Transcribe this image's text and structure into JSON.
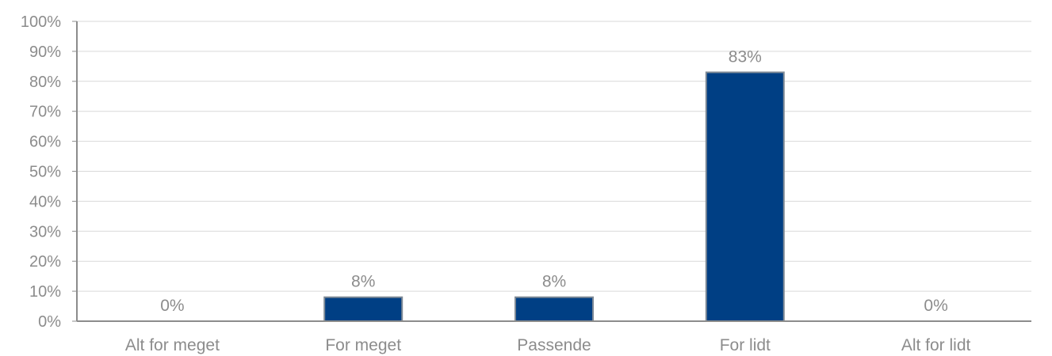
{
  "chart_data": {
    "type": "bar",
    "categories": [
      "Alt for meget",
      "For meget",
      "Passende",
      "For lidt",
      "Alt for lidt"
    ],
    "values": [
      0,
      8,
      8,
      83,
      0
    ],
    "data_labels": [
      "0%",
      "8%",
      "8%",
      "83%",
      "0%"
    ],
    "y_ticks": [
      "0%",
      "10%",
      "20%",
      "30%",
      "40%",
      "50%",
      "60%",
      "70%",
      "80%",
      "90%",
      "100%"
    ],
    "ylim": [
      0,
      100
    ],
    "title": "",
    "xlabel": "",
    "ylabel": "",
    "grid": true,
    "legend": "none",
    "bar_color": "#003f84",
    "bar_edge_color": "#7f8a96"
  }
}
